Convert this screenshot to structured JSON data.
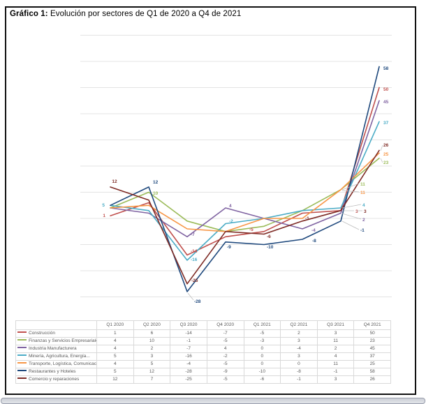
{
  "header": {
    "title_prefix": "Gráfico 1:",
    "title_rest": " Evolución por sectores de Q1 de 2020 a Q4 de 2021"
  },
  "chart_data": {
    "type": "line",
    "title": "Gráfico 1: Evolución por sectores de Q1 de 2020 a Q4 de 2021",
    "xlabel": "",
    "ylabel": "",
    "ylim": [
      -30,
      70
    ],
    "grid": true,
    "grid_step": 10,
    "legend_position": "left column of data table below chart",
    "categories": [
      "Q1 2020",
      "Q2 2020",
      "Q3 2020",
      "Q4 2020",
      "Q1 2021",
      "Q2 2021",
      "Q3 2021",
      "Q4 2021"
    ],
    "series": [
      {
        "name": "Construcción",
        "color": "#C0504D",
        "values": [
          1,
          6,
          -14,
          -7,
          -5,
          2,
          3,
          50
        ]
      },
      {
        "name": "Finanzas y Servicios Empresariales",
        "color": "#9BBB59",
        "values": [
          4,
          10,
          -1,
          -5,
          -3,
          3,
          11,
          23
        ]
      },
      {
        "name": "Industria Manufacturera",
        "color": "#8064A2",
        "values": [
          4,
          2,
          -7,
          4,
          0,
          -4,
          2,
          45
        ]
      },
      {
        "name": "Minería, Agricultura, Energía...",
        "color": "#4BACC6",
        "values": [
          5,
          3,
          -16,
          -2,
          0,
          3,
          4,
          37
        ]
      },
      {
        "name": "Transporte, Logística, Comunicaciones...",
        "color": "#F79646",
        "values": [
          4,
          5,
          -4,
          -5,
          0,
          0,
          11,
          25
        ]
      },
      {
        "name": "Restaurantes y Hoteles",
        "color": "#1F497D",
        "values": [
          5,
          12,
          -28,
          -9,
          -10,
          -8,
          -1,
          58
        ]
      },
      {
        "name": "Comercio y reparaciones",
        "color": "#7E2B25",
        "values": [
          12,
          7,
          -25,
          -5,
          -6,
          -1,
          3,
          26
        ]
      }
    ],
    "data_labels_shown": [
      {
        "series": 6,
        "index": 0,
        "text": "12"
      },
      {
        "series": 0,
        "index": 0,
        "text": "1"
      },
      {
        "series": 3,
        "index": 0,
        "text": "5"
      },
      {
        "series": 5,
        "index": 1,
        "text": "12"
      },
      {
        "series": 1,
        "index": 1,
        "text": "10"
      },
      {
        "series": 2,
        "index": 2,
        "text": "-7"
      },
      {
        "series": 0,
        "index": 2,
        "text": "-14"
      },
      {
        "series": 3,
        "index": 2,
        "text": "-16"
      },
      {
        "series": 6,
        "index": 2,
        "text": "-25"
      },
      {
        "series": 5,
        "index": 2,
        "text": "-28"
      },
      {
        "series": 2,
        "index": 3,
        "text": "4"
      },
      {
        "series": 3,
        "index": 3,
        "text": "-2"
      },
      {
        "series": 5,
        "index": 3,
        "text": "-9"
      },
      {
        "series": 0,
        "index": 4,
        "text": "-5"
      },
      {
        "series": 6,
        "index": 4,
        "text": "-6"
      },
      {
        "series": 5,
        "index": 4,
        "text": "-10"
      },
      {
        "series": 6,
        "index": 5,
        "text": "-1"
      },
      {
        "series": 2,
        "index": 5,
        "text": "-4"
      },
      {
        "series": 5,
        "index": 5,
        "text": "-8"
      },
      {
        "series": 1,
        "index": 6,
        "text": "11"
      },
      {
        "series": 4,
        "index": 6,
        "text": "11"
      },
      {
        "series": 3,
        "index": 6,
        "text": "4"
      },
      {
        "series": 0,
        "index": 6,
        "text": "3"
      },
      {
        "series": 6,
        "index": 6,
        "text": "3"
      },
      {
        "series": 2,
        "index": 6,
        "text": "2"
      },
      {
        "series": 5,
        "index": 6,
        "text": "-1"
      },
      {
        "series": 5,
        "index": 7,
        "text": "58"
      },
      {
        "series": 0,
        "index": 7,
        "text": "50"
      },
      {
        "series": 2,
        "index": 7,
        "text": "45"
      },
      {
        "series": 3,
        "index": 7,
        "text": "37"
      },
      {
        "series": 6,
        "index": 7,
        "text": "26"
      },
      {
        "series": 4,
        "index": 7,
        "text": "25"
      },
      {
        "series": 1,
        "index": 7,
        "text": "23"
      }
    ],
    "table": {
      "corner_label": "",
      "columns": [
        "Q1 2020",
        "Q2 2020",
        "Q3 2020",
        "Q4 2020",
        "Q1 2021",
        "Q2 2021",
        "Q3 2021",
        "Q4 2021"
      ]
    }
  }
}
